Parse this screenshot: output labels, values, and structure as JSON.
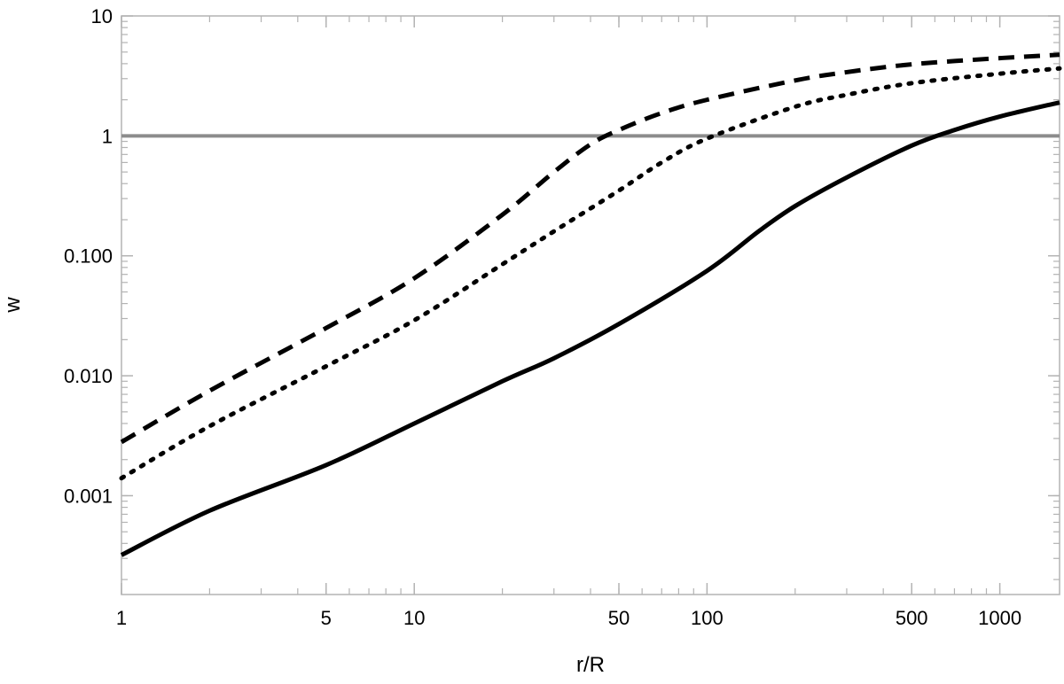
{
  "chart_data": {
    "type": "line",
    "xlabel": "r/R",
    "ylabel": "w",
    "xscale": "log",
    "yscale": "log",
    "xlim": [
      1,
      1600
    ],
    "ylim": [
      0.00015,
      10
    ],
    "grid": false,
    "x_ticks": [
      {
        "value": 1,
        "label": "1"
      },
      {
        "value": 5,
        "label": "5"
      },
      {
        "value": 10,
        "label": "10"
      },
      {
        "value": 50,
        "label": "50"
      },
      {
        "value": 100,
        "label": "100"
      },
      {
        "value": 500,
        "label": "500"
      },
      {
        "value": 1000,
        "label": "1000"
      }
    ],
    "y_ticks": [
      {
        "value": 0.001,
        "label": "0.001"
      },
      {
        "value": 0.01,
        "label": "0.010"
      },
      {
        "value": 0.1,
        "label": "0.100"
      },
      {
        "value": 1,
        "label": "1"
      },
      {
        "value": 10,
        "label": "10"
      }
    ],
    "reference_line": {
      "y": 1,
      "color": "#8c8c8c"
    },
    "series": [
      {
        "style": "dashed",
        "color": "#000000",
        "points": [
          [
            1,
            0.0028
          ],
          [
            2,
            0.0075
          ],
          [
            5,
            0.025
          ],
          [
            10,
            0.065
          ],
          [
            20,
            0.22
          ],
          [
            30,
            0.5
          ],
          [
            40,
            0.85
          ],
          [
            50,
            1.12
          ],
          [
            70,
            1.55
          ],
          [
            100,
            2.0
          ],
          [
            200,
            2.9
          ],
          [
            300,
            3.4
          ],
          [
            500,
            3.95
          ],
          [
            1000,
            4.45
          ],
          [
            1600,
            4.75
          ]
        ]
      },
      {
        "style": "dotted",
        "color": "#000000",
        "points": [
          [
            1,
            0.0014
          ],
          [
            2,
            0.0038
          ],
          [
            5,
            0.012
          ],
          [
            10,
            0.029
          ],
          [
            20,
            0.085
          ],
          [
            30,
            0.16
          ],
          [
            50,
            0.35
          ],
          [
            70,
            0.6
          ],
          [
            100,
            0.95
          ],
          [
            200,
            1.75
          ],
          [
            300,
            2.2
          ],
          [
            500,
            2.75
          ],
          [
            1000,
            3.3
          ],
          [
            1600,
            3.65
          ]
        ]
      },
      {
        "style": "solid",
        "color": "#000000",
        "points": [
          [
            1,
            0.00032
          ],
          [
            2,
            0.00075
          ],
          [
            5,
            0.0018
          ],
          [
            10,
            0.004
          ],
          [
            20,
            0.009
          ],
          [
            30,
            0.014
          ],
          [
            50,
            0.027
          ],
          [
            100,
            0.075
          ],
          [
            150,
            0.16
          ],
          [
            200,
            0.26
          ],
          [
            300,
            0.45
          ],
          [
            500,
            0.83
          ],
          [
            700,
            1.12
          ],
          [
            1000,
            1.45
          ],
          [
            1600,
            1.9
          ]
        ]
      }
    ]
  }
}
